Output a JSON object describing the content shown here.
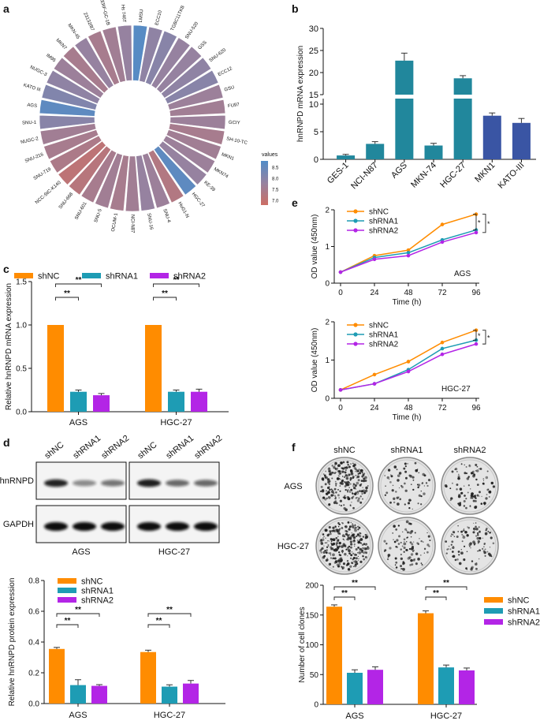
{
  "panel_labels": {
    "a": "a",
    "b": "b",
    "c": "c",
    "d": "d",
    "e": "e",
    "f": "f"
  },
  "colors": {
    "orange": "#FF8C00",
    "teal": "#1E9CB4",
    "purple": "#B325E6",
    "dteal": "#21879C",
    "blue": "#3A55A4"
  },
  "radial": {
    "legend_title": "values",
    "legend_ticks": [
      "8.5",
      "8.0",
      "7.5",
      "7.0"
    ],
    "vmin": 6.8,
    "vmax": 8.8,
    "cells": [
      {
        "name": "LMSU",
        "value": 8.7
      },
      {
        "name": "ECC10",
        "value": 7.9
      },
      {
        "name": "TGBC11TKB",
        "value": 8.0
      },
      {
        "name": "SNU-520",
        "value": 7.8
      },
      {
        "name": "GSS",
        "value": 7.8
      },
      {
        "name": "SNU-620",
        "value": 7.9
      },
      {
        "name": "ECC12",
        "value": 8.0
      },
      {
        "name": "GSU",
        "value": 7.7
      },
      {
        "name": "FU97",
        "value": 7.6
      },
      {
        "name": "GCIY",
        "value": 7.7
      },
      {
        "name": "SH-10-TC",
        "value": 7.5
      },
      {
        "name": "MKN1",
        "value": 7.6
      },
      {
        "name": "MKN74",
        "value": 7.7
      },
      {
        "name": "KE-39",
        "value": 7.8
      },
      {
        "name": "HGC-27",
        "value": 8.6
      },
      {
        "name": "HuG1-N",
        "value": 7.3
      },
      {
        "name": "SNU-4",
        "value": 7.7
      },
      {
        "name": "SNU-16",
        "value": 7.8
      },
      {
        "name": "NCI-N87",
        "value": 7.6
      },
      {
        "name": "OCUM-1",
        "value": 7.5
      },
      {
        "name": "SNU-5",
        "value": 7.6
      },
      {
        "name": "SNU-601",
        "value": 7.5
      },
      {
        "name": "SNU-668",
        "value": 7.2
      },
      {
        "name": "NCC-StC-K140",
        "value": 7.1
      },
      {
        "name": "SNU-719",
        "value": 7.4
      },
      {
        "name": "SNU-216",
        "value": 7.5
      },
      {
        "name": "NUGC-2",
        "value": 7.6
      },
      {
        "name": "SNU-1",
        "value": 8.0
      },
      {
        "name": "AGS",
        "value": 8.6
      },
      {
        "name": "KATO III",
        "value": 8.1
      },
      {
        "name": "NUGC-3",
        "value": 7.9
      },
      {
        "name": "IM95",
        "value": 7.7
      },
      {
        "name": "MKN7",
        "value": 7.5
      },
      {
        "name": "MKN-45",
        "value": 7.8
      },
      {
        "name": "23132/87",
        "value": 7.5
      },
      {
        "name": "RERF-GC-1B",
        "value": 7.6
      },
      {
        "name": "Hs 746T",
        "value": 7.8
      }
    ]
  },
  "chart_data": [
    {
      "panel": "b",
      "type": "bar",
      "ylabel": "hnRNPD mRNA expression",
      "categories": [
        "GES-1",
        "NCI-N87",
        "AGS",
        "MKN-74",
        "HGC-27",
        "MKN1",
        "KATO-III"
      ],
      "values": [
        0.7,
        2.8,
        22.7,
        2.5,
        18.7,
        7.9,
        6.6
      ],
      "errors": [
        0.2,
        0.4,
        1.7,
        0.4,
        0.6,
        0.5,
        0.8
      ],
      "bar_colors": [
        "#21879C",
        "#21879C",
        "#21879C",
        "#21879C",
        "#21879C",
        "#3A55A4",
        "#3A55A4"
      ],
      "yticks": [
        "0",
        "5",
        "10",
        "15",
        "20",
        "25",
        "30"
      ],
      "ylim": [
        0,
        30
      ],
      "axis_break": [
        11,
        15
      ]
    },
    {
      "panel": "c",
      "type": "bar",
      "ylabel": "Relative hnRNPD mRNA expression",
      "categories": [
        "AGS",
        "HGC-27"
      ],
      "legend": [
        "shNC",
        "shRNA1",
        "shRNA2"
      ],
      "series": [
        {
          "name": "shNC",
          "values": [
            1.0,
            1.0
          ],
          "errors": [
            0,
            0
          ]
        },
        {
          "name": "shRNA1",
          "values": [
            0.23,
            0.23
          ],
          "errors": [
            0.02,
            0.02
          ]
        },
        {
          "name": "shRNA2",
          "values": [
            0.19,
            0.23
          ],
          "errors": [
            0.02,
            0.03
          ]
        }
      ],
      "ylim": [
        0,
        1.5
      ],
      "yticks": [
        "0.0",
        "0.5",
        "1.0",
        "1.5"
      ],
      "sig": [
        "**",
        "**",
        "**",
        "**"
      ]
    },
    {
      "panel": "d",
      "type": "bar",
      "ylabel": "Relative hnRNPD protein expression",
      "categories": [
        "AGS",
        "HGC-27"
      ],
      "legend": [
        "shNC",
        "shRNA1",
        "shRNA2"
      ],
      "series": [
        {
          "name": "shNC",
          "values": [
            0.355,
            0.335
          ],
          "errors": [
            0.01,
            0.012
          ]
        },
        {
          "name": "shRNA1",
          "values": [
            0.12,
            0.11
          ],
          "errors": [
            0.035,
            0.012
          ]
        },
        {
          "name": "shRNA2",
          "values": [
            0.115,
            0.13
          ],
          "errors": [
            0.008,
            0.02
          ]
        }
      ],
      "ylim": [
        0,
        0.8
      ],
      "yticks": [
        "0.0",
        "0.2",
        "0.4",
        "0.6",
        "0.8"
      ],
      "sig": [
        "**",
        "**",
        "**",
        "**"
      ]
    },
    {
      "panel": "e1",
      "type": "line",
      "title": "AGS",
      "xlabel": "Time (h)",
      "ylabel": "OD value (450nm)",
      "x": [
        0,
        24,
        48,
        72,
        96
      ],
      "legend": [
        "shNC",
        "shRNA1",
        "shRNA2"
      ],
      "series": [
        {
          "name": "shNC",
          "values": [
            0.3,
            0.75,
            0.9,
            1.6,
            1.88
          ]
        },
        {
          "name": "shRNA1",
          "values": [
            0.3,
            0.7,
            0.83,
            1.18,
            1.45
          ]
        },
        {
          "name": "shRNA2",
          "values": [
            0.3,
            0.65,
            0.75,
            1.12,
            1.38
          ]
        }
      ],
      "ylim": [
        0,
        2
      ],
      "yticks": [
        "0",
        "1",
        "2"
      ],
      "xticks": [
        "0",
        "24",
        "48",
        "72",
        "96"
      ],
      "sig": [
        "*",
        "*"
      ]
    },
    {
      "panel": "e2",
      "type": "line",
      "title": "HGC-27",
      "xlabel": "Time (h)",
      "ylabel": "OD value (450nm)",
      "x": [
        0,
        24,
        48,
        72,
        96
      ],
      "legend": [
        "shNC",
        "shRNA1",
        "shRNA2"
      ],
      "series": [
        {
          "name": "shNC",
          "values": [
            0.22,
            0.62,
            0.96,
            1.46,
            1.78
          ]
        },
        {
          "name": "shRNA1",
          "values": [
            0.22,
            0.38,
            0.75,
            1.3,
            1.52
          ]
        },
        {
          "name": "shRNA2",
          "values": [
            0.22,
            0.38,
            0.7,
            1.15,
            1.42
          ]
        }
      ],
      "ylim": [
        0,
        2
      ],
      "yticks": [
        "0",
        "1",
        "2"
      ],
      "xticks": [
        "0",
        "24",
        "48",
        "72",
        "96"
      ],
      "sig": [
        "*",
        "*"
      ]
    },
    {
      "panel": "f",
      "type": "bar",
      "ylabel": "Number of cell clones",
      "categories": [
        "AGS",
        "HGC-27"
      ],
      "legend": [
        "shNC",
        "shRNA1",
        "shRNA2"
      ],
      "series": [
        {
          "name": "shNC",
          "values": [
            164,
            153
          ],
          "errors": [
            3,
            4
          ]
        },
        {
          "name": "shRNA1",
          "values": [
            53,
            62
          ],
          "errors": [
            5,
            4
          ]
        },
        {
          "name": "shRNA2",
          "values": [
            58,
            57
          ],
          "errors": [
            5,
            4
          ]
        }
      ],
      "ylim": [
        0,
        200
      ],
      "yticks": [
        "0",
        "50",
        "100",
        "150",
        "200"
      ],
      "sig": [
        "**",
        "**",
        "**",
        "**"
      ]
    }
  ],
  "blot": {
    "lane_labels": [
      "shNC",
      "shRNA1",
      "shRNA2",
      "shNC",
      "shRNA1",
      "shRNA2"
    ],
    "row_labels": [
      "hnRNPD",
      "GAPDH"
    ],
    "group_labels": [
      "AGS",
      "HGC-27"
    ],
    "hnRNPD_intensity": [
      0.9,
      0.45,
      0.55,
      0.92,
      0.6,
      0.6
    ],
    "gapdh_intensity": [
      1,
      1,
      1,
      1,
      1,
      1
    ]
  },
  "clone": {
    "col_labels": [
      "shNC",
      "shRNA1",
      "shRNA2"
    ],
    "row_labels": [
      "AGS",
      "HGC-27"
    ],
    "density": [
      [
        0.75,
        0.22,
        0.3
      ],
      [
        0.85,
        0.3,
        0.32
      ]
    ]
  }
}
